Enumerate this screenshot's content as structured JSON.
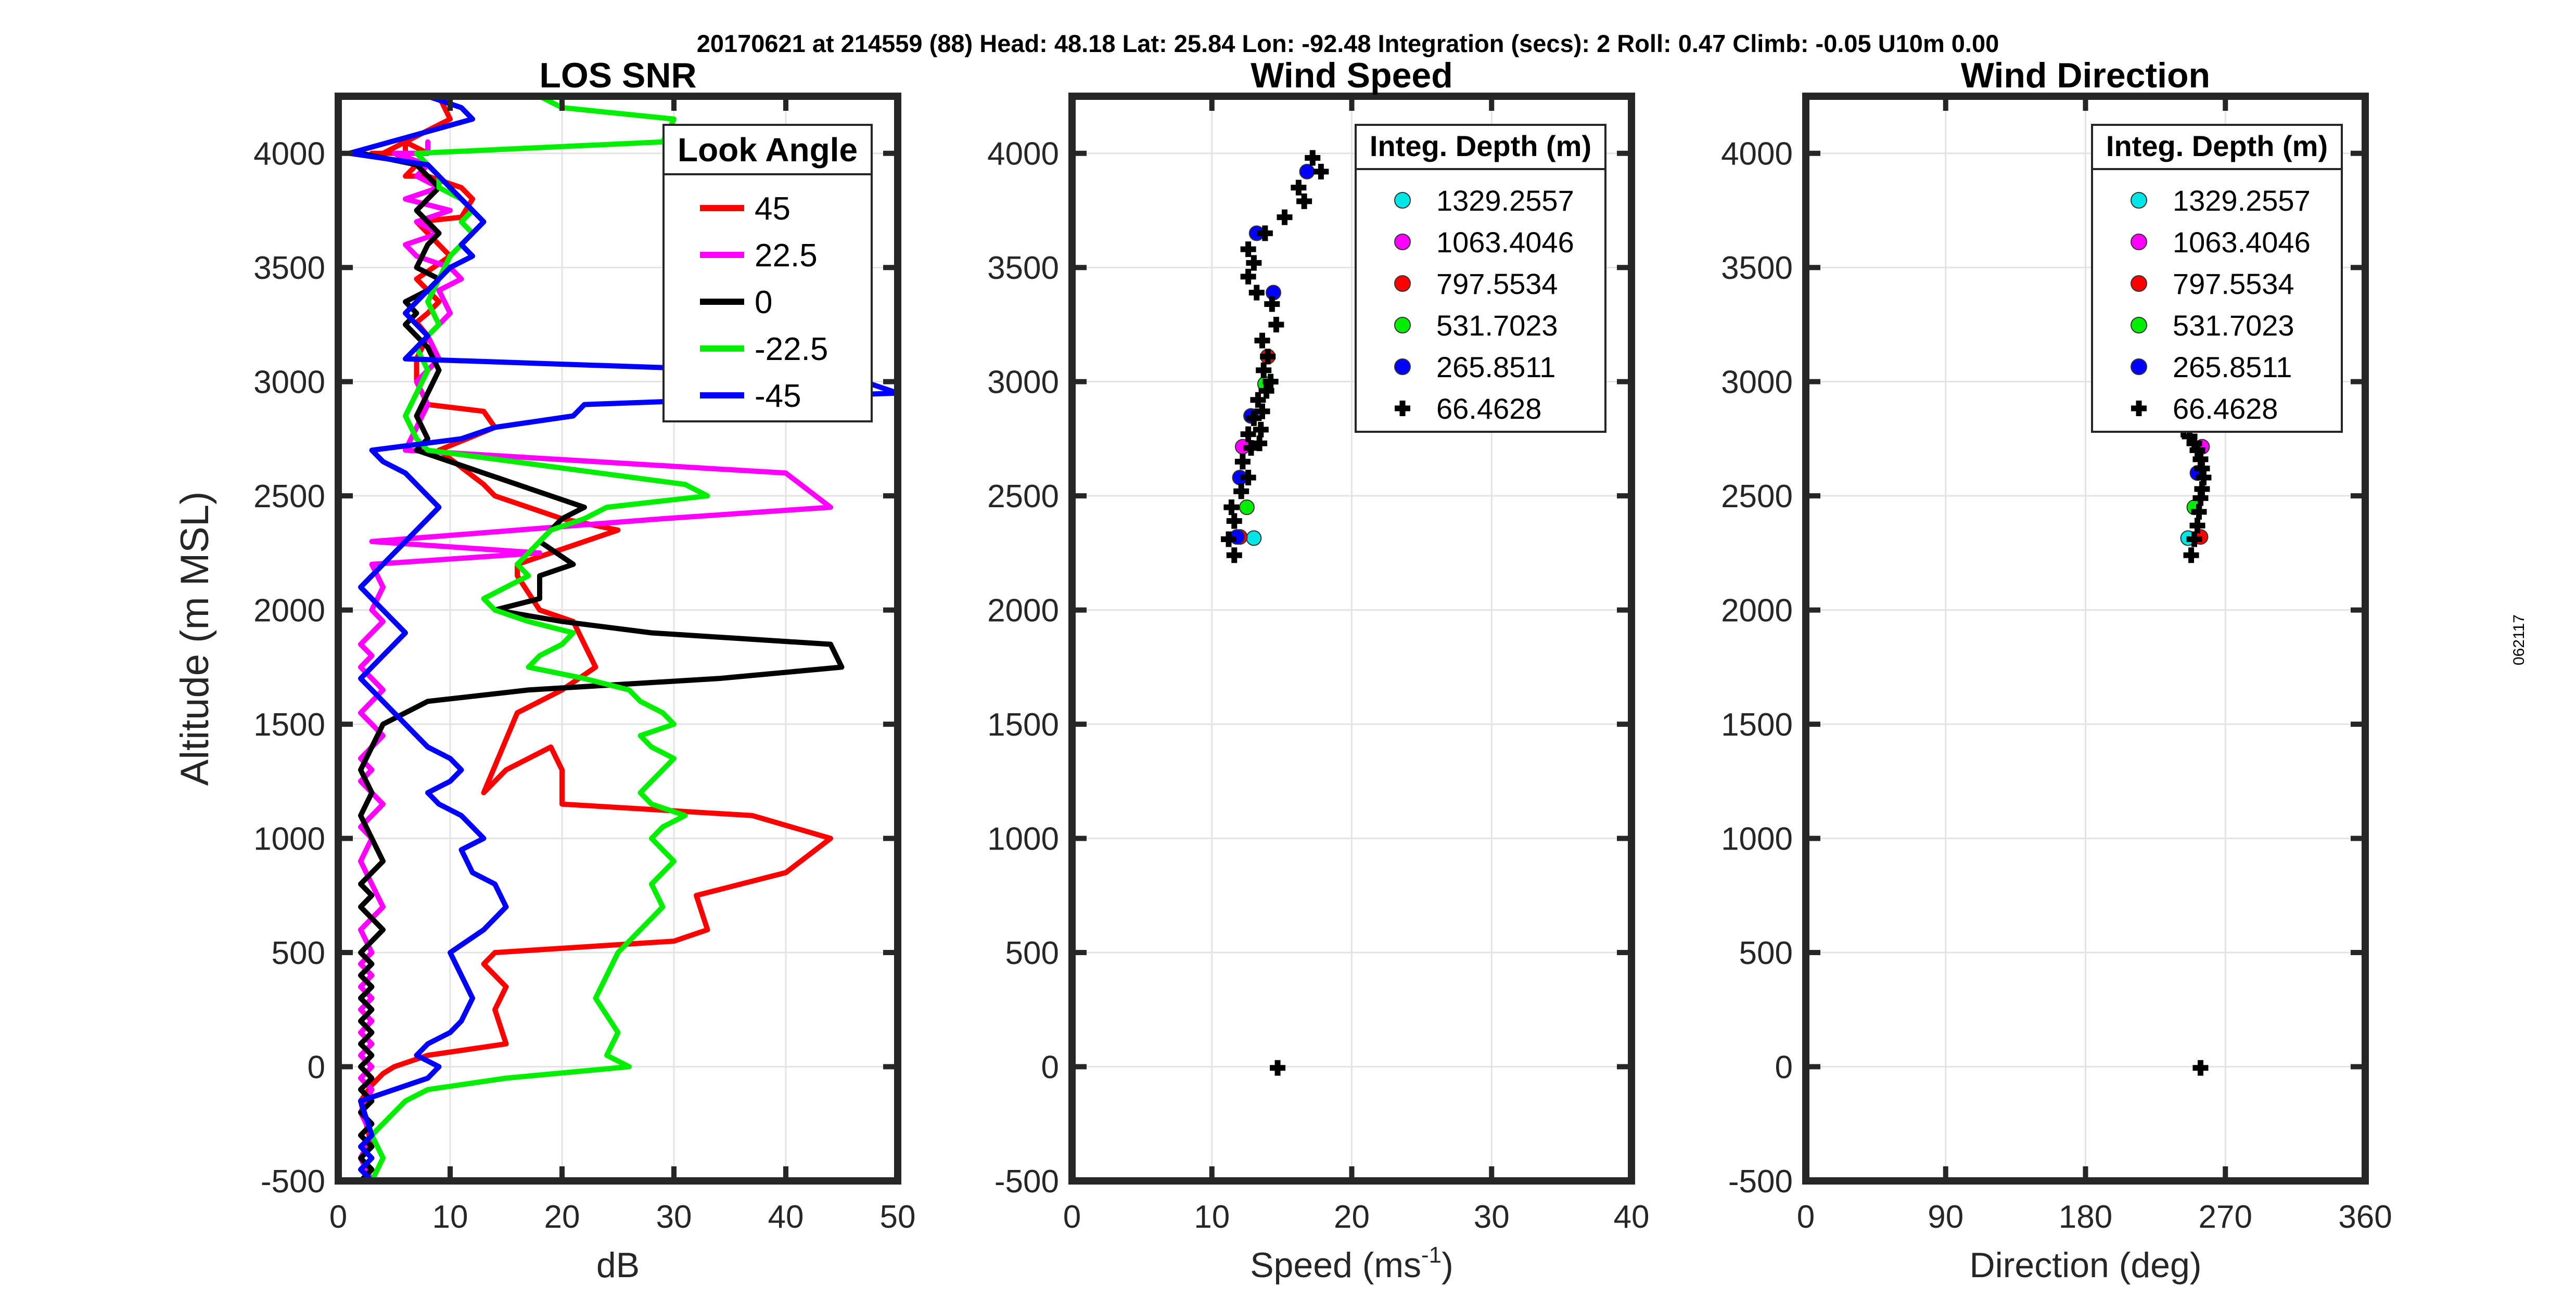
{
  "header": "20170621 at 214559 (88)  Head: 48.18  Lat: 25.84  Lon: -92.48  Integration (secs): 2  Roll: 0.47  Climb: -0.05  U10m 0.00",
  "side_label": "062117",
  "colors": {
    "cyan": "#00e5e5",
    "magenta": "#ff00ff",
    "red": "#ff0000",
    "green": "#00ee00",
    "blue": "#0000ff",
    "black": "#000000"
  },
  "chart_data": [
    {
      "type": "line",
      "title": "LOS SNR",
      "xlabel": "dB",
      "ylabel": "Altitude (m MSL)",
      "xlim": [
        0,
        50
      ],
      "ylim": [
        -500,
        4250
      ],
      "xticks": [
        "0",
        "10",
        "20",
        "30",
        "40",
        "50"
      ],
      "yticks": [
        "-500",
        "0",
        "500",
        "1000",
        "1500",
        "2000",
        "2500",
        "3000",
        "3500",
        "4000"
      ],
      "legend_title": "Look Angle",
      "legend_position": "top-right",
      "series": [
        {
          "name": "45",
          "color": "#ff0000",
          "x": [
            3,
            2,
            3,
            4,
            5,
            8,
            15,
            14,
            15,
            13,
            14,
            30,
            33,
            32,
            40,
            44,
            37,
            20,
            20,
            19,
            15,
            13,
            16,
            20,
            23,
            22,
            21,
            18,
            16,
            16,
            25,
            20,
            14,
            13,
            9,
            14,
            13,
            8,
            7,
            7,
            8,
            7,
            8,
            9,
            8,
            7,
            10,
            9,
            8,
            7,
            11,
            12,
            11,
            8,
            6,
            7,
            5,
            6,
            6,
            8,
            3,
            4,
            4,
            10,
            9
          ],
          "y": [
            -350,
            -150,
            -80,
            -30,
            0,
            50,
            100,
            250,
            350,
            450,
            500,
            550,
            600,
            750,
            850,
            1000,
            1100,
            1150,
            1300,
            1400,
            1300,
            1200,
            1550,
            1650,
            1750,
            1850,
            1950,
            2000,
            2150,
            2200,
            2350,
            2400,
            2500,
            2550,
            2700,
            2800,
            2870,
            2900,
            3000,
            3100,
            3200,
            3260,
            3300,
            3350,
            3400,
            3450,
            3550,
            3600,
            3650,
            3700,
            3720,
            3800,
            3850,
            3900,
            3900,
            3950,
            4000,
            4000,
            4050,
            4000,
            4000,
            3990,
            4000,
            4150,
            4250
          ]
        },
        {
          "name": "22.5",
          "color": "#ff00ff",
          "x": [
            3,
            2,
            3,
            2,
            3,
            2,
            3,
            2,
            3,
            2,
            3,
            2,
            3,
            2,
            3,
            2,
            3,
            2,
            4,
            3,
            2,
            3,
            2,
            3,
            4,
            3,
            2,
            3,
            2,
            3,
            4,
            3,
            2,
            3,
            4,
            3,
            2,
            3,
            2,
            3,
            4,
            3,
            4,
            3,
            18,
            3,
            29,
            44,
            40,
            6,
            7,
            8,
            7,
            9,
            8,
            10,
            9,
            11,
            10,
            7,
            6,
            9,
            7,
            10,
            6,
            9,
            7,
            8,
            5,
            8,
            8
          ],
          "y": [
            -500,
            -400,
            -300,
            -200,
            -100,
            -50,
            0,
            50,
            100,
            150,
            200,
            250,
            300,
            350,
            400,
            450,
            500,
            600,
            700,
            800,
            900,
            1000,
            1050,
            1100,
            1150,
            1200,
            1250,
            1300,
            1350,
            1400,
            1450,
            1500,
            1550,
            1600,
            1650,
            1700,
            1750,
            1800,
            1850,
            1900,
            1950,
            2000,
            2100,
            2200,
            2250,
            2300,
            2400,
            2450,
            2600,
            2700,
            2800,
            2900,
            3000,
            3100,
            3200,
            3300,
            3400,
            3450,
            3500,
            3550,
            3600,
            3650,
            3700,
            3750,
            3800,
            3850,
            3900,
            3950,
            4000,
            4000,
            4050
          ]
        },
        {
          "name": "0",
          "color": "#000000",
          "x": [
            2,
            3,
            2,
            3,
            2,
            3,
            2,
            3,
            2,
            3,
            2,
            3,
            2,
            3,
            2,
            3,
            2,
            3,
            2,
            3,
            2,
            3,
            4,
            3,
            2,
            3,
            2,
            3,
            4,
            3,
            2,
            3,
            2,
            3,
            4,
            8,
            17,
            34,
            45,
            44,
            28,
            20,
            14,
            18,
            18,
            21,
            18,
            20,
            22,
            19,
            13,
            7,
            8,
            7,
            8,
            9,
            8,
            7,
            6,
            7,
            6,
            8,
            9,
            7,
            8,
            9,
            8,
            7,
            8,
            9,
            7,
            2
          ],
          "y": [
            -500,
            -450,
            -400,
            -350,
            -300,
            -250,
            -200,
            -150,
            -100,
            -50,
            0,
            50,
            100,
            150,
            200,
            250,
            300,
            350,
            400,
            450,
            500,
            550,
            600,
            650,
            700,
            750,
            800,
            850,
            900,
            1000,
            1100,
            1200,
            1300,
            1400,
            1500,
            1600,
            1650,
            1700,
            1750,
            1850,
            1900,
            1950,
            2000,
            2050,
            2150,
            2200,
            2300,
            2400,
            2450,
            2500,
            2600,
            2700,
            2750,
            2850,
            2950,
            3050,
            3150,
            3200,
            3250,
            3300,
            3350,
            3400,
            3450,
            3500,
            3600,
            3650,
            3700,
            3750,
            3800,
            3850,
            3950,
            4000
          ]
        },
        {
          "name": "-22.5",
          "color": "#00ee00",
          "x": [
            3,
            4,
            3,
            5,
            6,
            8,
            15,
            26,
            24,
            25,
            23,
            24,
            25,
            29,
            28,
            30,
            28,
            29,
            31,
            28,
            27,
            28,
            29,
            30,
            28,
            27,
            30,
            29,
            27,
            26,
            22,
            17,
            18,
            20,
            21,
            17,
            14,
            13,
            15,
            17,
            16,
            17,
            18,
            19,
            22,
            24,
            33,
            31,
            8,
            7,
            6,
            7,
            8,
            7,
            9,
            8,
            9,
            10,
            11,
            12,
            11,
            12,
            11,
            9,
            9,
            8,
            7,
            29,
            30,
            20,
            18
          ],
          "y": [
            -500,
            -400,
            -300,
            -200,
            -150,
            -100,
            -50,
            0,
            50,
            150,
            300,
            400,
            500,
            700,
            800,
            900,
            1000,
            1050,
            1100,
            1150,
            1200,
            1250,
            1300,
            1350,
            1400,
            1450,
            1500,
            1550,
            1600,
            1650,
            1700,
            1750,
            1800,
            1850,
            1900,
            1950,
            2000,
            2050,
            2100,
            2150,
            2200,
            2250,
            2300,
            2350,
            2400,
            2450,
            2500,
            2550,
            2700,
            2750,
            2850,
            2950,
            3050,
            3150,
            3250,
            3350,
            3450,
            3550,
            3600,
            3650,
            3700,
            3750,
            3800,
            3850,
            3900,
            3950,
            4000,
            4050,
            4150,
            4200,
            4250
          ]
        },
        {
          "name": "-45",
          "color": "#0000ff",
          "x": [
            3,
            2,
            3,
            2,
            3,
            2,
            8,
            9,
            7,
            8,
            10,
            11,
            12,
            11,
            10,
            13,
            15,
            14,
            12,
            11,
            13,
            12,
            11,
            9,
            8,
            10,
            11,
            10,
            8,
            7,
            6,
            5,
            4,
            3,
            2,
            3,
            4,
            5,
            6,
            5,
            4,
            3,
            2,
            3,
            4,
            5,
            6,
            7,
            8,
            9,
            8,
            7,
            6,
            4,
            3,
            11,
            14,
            21,
            22,
            50,
            47,
            36,
            6,
            7,
            8,
            7,
            6,
            7,
            8,
            9,
            10,
            12,
            11,
            12,
            13,
            12,
            11,
            10,
            9,
            8,
            1,
            12,
            11,
            8
          ],
          "y": [
            -500,
            -450,
            -400,
            -350,
            -300,
            -150,
            -50,
            0,
            50,
            100,
            150,
            200,
            300,
            400,
            500,
            600,
            700,
            800,
            850,
            950,
            1000,
            1050,
            1100,
            1150,
            1200,
            1250,
            1300,
            1350,
            1400,
            1450,
            1500,
            1550,
            1600,
            1650,
            1700,
            1750,
            1800,
            1850,
            1900,
            1950,
            2000,
            2050,
            2100,
            2150,
            2200,
            2250,
            2300,
            2350,
            2400,
            2450,
            2500,
            2550,
            2600,
            2650,
            2700,
            2750,
            2800,
            2850,
            2900,
            2950,
            3000,
            3050,
            3100,
            3150,
            3200,
            3250,
            3300,
            3350,
            3400,
            3450,
            3500,
            3550,
            3600,
            3650,
            3700,
            3750,
            3800,
            3850,
            3900,
            3950,
            4000,
            4150,
            4200,
            4250
          ]
        }
      ]
    },
    {
      "type": "scatter",
      "title": "Wind Speed",
      "xlabel": "Speed (ms",
      "xlabel_sup": "-1",
      "xlabel_end": ")",
      "xlim": [
        0,
        40
      ],
      "ylim": [
        -500,
        4250
      ],
      "xticks": [
        "0",
        "10",
        "20",
        "30",
        "40"
      ],
      "yticks": [
        "-500",
        "0",
        "500",
        "1000",
        "1500",
        "2000",
        "2500",
        "3000",
        "3500",
        "4000"
      ],
      "legend_title": "Integ. Depth (m)",
      "legend_position": "top-right",
      "series": [
        {
          "name": "1329.2557",
          "color": "#00e5e5",
          "marker": "circle",
          "x": [
            13.0
          ],
          "y": [
            2315
          ]
        },
        {
          "name": "1063.4046",
          "color": "#ff00ff",
          "marker": "circle",
          "x": [
            12.2
          ],
          "y": [
            2715
          ]
        },
        {
          "name": "797.5534",
          "color": "#ff0000",
          "marker": "circle",
          "x": [
            12.0,
            14.0
          ],
          "y": [
            2320,
            3110
          ]
        },
        {
          "name": "531.7023",
          "color": "#00ee00",
          "marker": "circle",
          "x": [
            12.5,
            13.8
          ],
          "y": [
            2450,
            2990
          ]
        },
        {
          "name": "265.8511",
          "color": "#0000ff",
          "marker": "circle",
          "x": [
            11.8,
            12.0,
            12.8,
            13.2,
            14.4,
            16.8
          ],
          "y": [
            2320,
            2580,
            2850,
            3650,
            3390,
            3920
          ]
        },
        {
          "name": "66.4628",
          "color": "#000000",
          "marker": "plus",
          "x": [
            11.6,
            11.2,
            11.6,
            11.4,
            12.1,
            12.6,
            12.2,
            12.8,
            13.4,
            12.6,
            13.5,
            13.0,
            13.6,
            13.3,
            13.9,
            14.2,
            13.7,
            14.0,
            13.6,
            14.6,
            14.3,
            13.2,
            12.6,
            13.0,
            12.6,
            13.8,
            15.2,
            16.6,
            16.2,
            17.8,
            17.2,
            14.7
          ],
          "y": [
            2240,
            2310,
            2390,
            2450,
            2520,
            2580,
            2650,
            2710,
            2730,
            2770,
            2790,
            2840,
            2870,
            2920,
            2960,
            3000,
            3050,
            3110,
            3180,
            3250,
            3340,
            3390,
            3460,
            3520,
            3580,
            3650,
            3720,
            3790,
            3850,
            3920,
            3980,
            -5
          ]
        }
      ]
    },
    {
      "type": "scatter",
      "title": "Wind Direction",
      "xlabel": "Direction (deg)",
      "xlim": [
        0,
        360
      ],
      "ylim": [
        -500,
        4250
      ],
      "xticks": [
        "0",
        "90",
        "180",
        "270",
        "360"
      ],
      "yticks": [
        "-500",
        "0",
        "500",
        "1000",
        "1500",
        "2000",
        "2500",
        "3000",
        "3500",
        "4000"
      ],
      "legend_title": "Integ. Depth (m)",
      "legend_position": "top-right",
      "series": [
        {
          "name": "1329.2557",
          "color": "#00e5e5",
          "marker": "circle",
          "x": [
            246
          ],
          "y": [
            2315
          ]
        },
        {
          "name": "1063.4046",
          "color": "#ff00ff",
          "marker": "circle",
          "x": [
            255
          ],
          "y": [
            2715
          ]
        },
        {
          "name": "797.5534",
          "color": "#ff0000",
          "marker": "circle",
          "x": [
            254
          ],
          "y": [
            2320
          ]
        },
        {
          "name": "531.7023",
          "color": "#00ee00",
          "marker": "circle",
          "x": [
            250
          ],
          "y": [
            2450
          ]
        },
        {
          "name": "265.8511",
          "color": "#0000ff",
          "marker": "circle",
          "x": [
            252
          ],
          "y": [
            2600
          ]
        },
        {
          "name": "66.4628",
          "color": "#000000",
          "marker": "plus",
          "x": [
            248,
            250,
            252,
            253,
            254,
            255,
            256,
            255,
            254,
            252,
            250,
            247,
            243,
            238,
            254
          ],
          "y": [
            2240,
            2310,
            2370,
            2430,
            2490,
            2530,
            2580,
            2620,
            2660,
            2700,
            2730,
            2760,
            2790,
            2820,
            -5
          ]
        }
      ]
    }
  ]
}
